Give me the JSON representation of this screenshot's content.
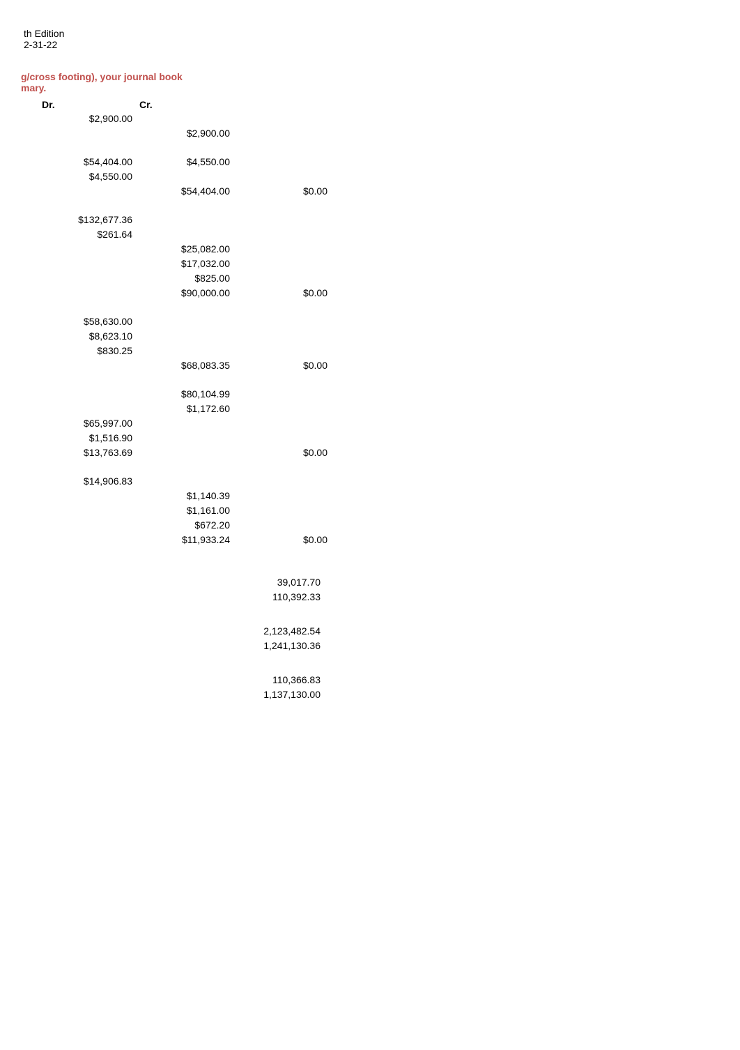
{
  "header": {
    "line1": "th Edition",
    "line2": "2-31-22"
  },
  "section_title_1": "g/cross footing), your journal book",
  "section_title_2": "mary.",
  "columns": {
    "dr": "Dr.",
    "cr": "Cr."
  },
  "groups": [
    {
      "rows": [
        {
          "c1": "$2,900.00",
          "c2": "",
          "c3": ""
        },
        {
          "c1": "",
          "c2": "$2,900.00",
          "c3": ""
        }
      ]
    },
    {
      "rows": [
        {
          "c1": "$54,404.00",
          "c2": "$4,550.00",
          "c3": ""
        },
        {
          "c1": "$4,550.00",
          "c2": "",
          "c3": ""
        },
        {
          "c1": "",
          "c2": "$54,404.00",
          "c3": "$0.00"
        }
      ]
    },
    {
      "rows": [
        {
          "c1": "$132,677.36",
          "c2": "",
          "c3": ""
        },
        {
          "c1": "$261.64",
          "c2": "",
          "c3": ""
        },
        {
          "c1": "",
          "c2": "$25,082.00",
          "c3": ""
        },
        {
          "c1": "",
          "c2": "$17,032.00",
          "c3": ""
        },
        {
          "c1": "",
          "c2": "$825.00",
          "c3": ""
        },
        {
          "c1": "",
          "c2": "$90,000.00",
          "c3": "$0.00"
        }
      ]
    },
    {
      "rows": [
        {
          "c1": "$58,630.00",
          "c2": "",
          "c3": ""
        },
        {
          "c1": "$8,623.10",
          "c2": "",
          "c3": ""
        },
        {
          "c1": "$830.25",
          "c2": "",
          "c3": ""
        },
        {
          "c1": "",
          "c2": "$68,083.35",
          "c3": "$0.00"
        }
      ]
    },
    {
      "rows": [
        {
          "c1": "",
          "c2": "$80,104.99",
          "c3": ""
        },
        {
          "c1": "",
          "c2": "$1,172.60",
          "c3": ""
        },
        {
          "c1": "$65,997.00",
          "c2": "",
          "c3": ""
        },
        {
          "c1": "$1,516.90",
          "c2": "",
          "c3": ""
        },
        {
          "c1": "$13,763.69",
          "c2": "",
          "c3": "$0.00"
        }
      ]
    },
    {
      "rows": [
        {
          "c1": "$14,906.83",
          "c2": "",
          "c3": ""
        },
        {
          "c1": "",
          "c2": "$1,140.39",
          "c3": ""
        },
        {
          "c1": "",
          "c2": "$1,161.00",
          "c3": ""
        },
        {
          "c1": "",
          "c2": "$672.20",
          "c3": ""
        },
        {
          "c1": "",
          "c2": "$11,933.24",
          "c3": "$0.00"
        }
      ]
    }
  ],
  "totals": [
    [
      "39,017.70",
      "110,392.33"
    ],
    [
      "2,123,482.54",
      "1,241,130.36"
    ],
    [
      "110,366.83",
      "1,137,130.00"
    ]
  ],
  "colors": {
    "title": "#c0504d",
    "text": "#000000",
    "background": "#ffffff"
  },
  "typography": {
    "body_fontsize": 14,
    "title_fontsize": 14,
    "font_family": "Verdana"
  }
}
